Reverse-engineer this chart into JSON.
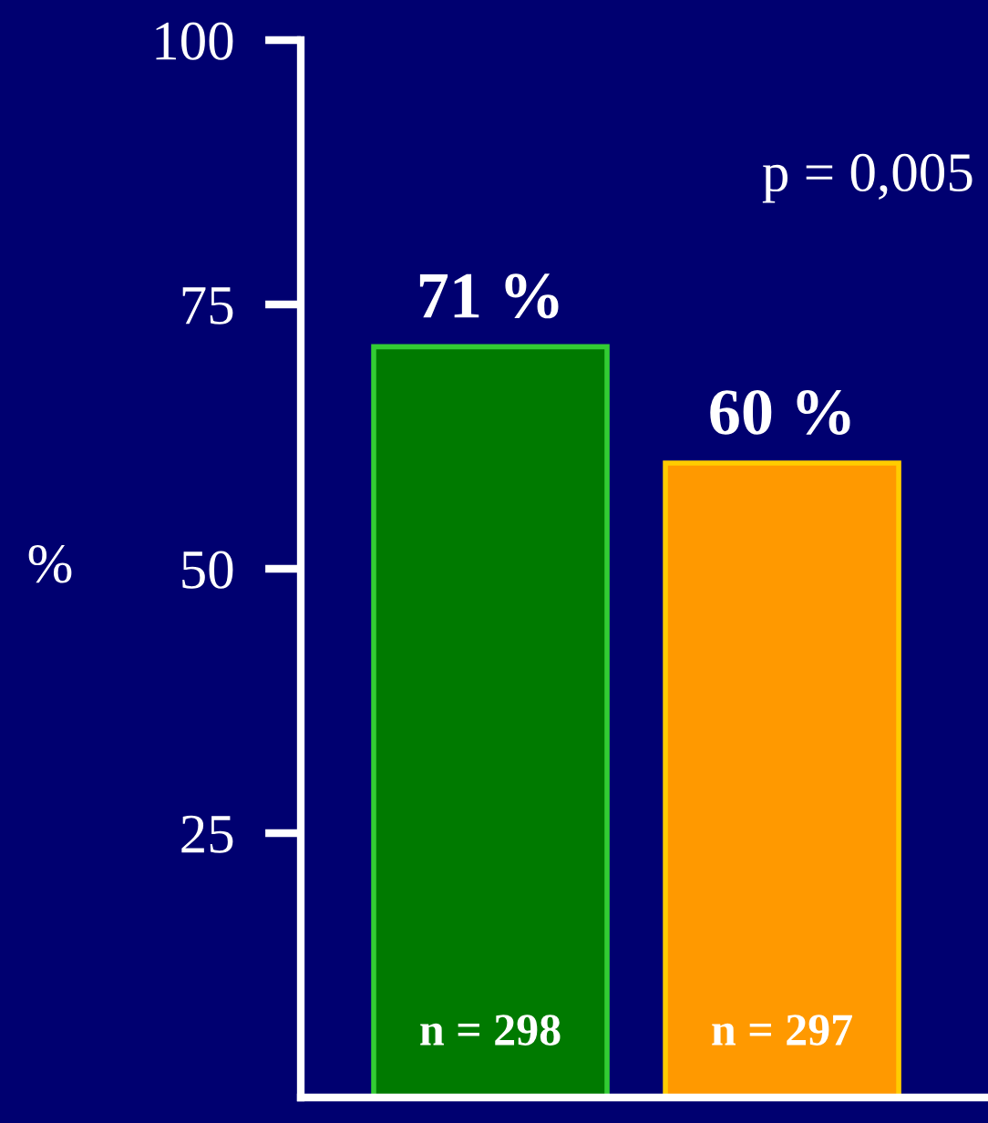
{
  "chart_data": {
    "type": "bar",
    "ylabel": "%",
    "categories": [
      null,
      null
    ],
    "values": [
      71,
      60
    ],
    "colors": [
      "#007a00",
      "#ff9900"
    ],
    "value_labels": [
      "71 %",
      "60 %"
    ],
    "ylim": [
      0,
      100
    ],
    "yticks": [
      25,
      50,
      75,
      100
    ],
    "annotations": [
      "n = 298",
      "n = 297",
      "p = 0,005"
    ],
    "grid": false,
    "legend": false
  }
}
